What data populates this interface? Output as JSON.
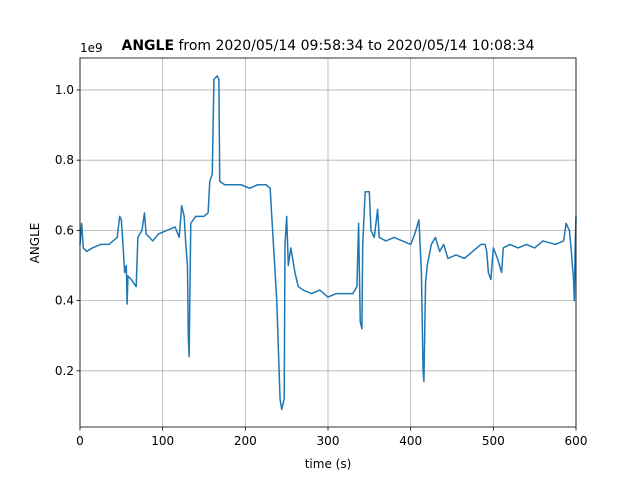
{
  "chart_data": {
    "type": "line",
    "title_parts": [
      "ANGLE",
      "from 2020/05/14 09:58:34 to 2020/05/14 10:08:34"
    ],
    "xlabel": "time (s)",
    "ylabel": "ANGLE",
    "y_offset_text": "1e9",
    "xlim": [
      0,
      600
    ],
    "xticks": [
      0,
      100,
      200,
      300,
      400,
      500,
      600
    ],
    "ylim": [
      0.04,
      1.091
    ],
    "yticks": [
      0.2,
      0.4,
      0.6,
      0.8,
      {
        "value": 1.0,
        "label": "1.0"
      }
    ],
    "grid": true,
    "series": [
      {
        "name": "ANGLE",
        "color": "#1f77b4",
        "x": [
          0,
          2,
          4,
          8,
          15,
          25,
          35,
          45,
          48,
          50,
          52,
          54,
          56,
          57,
          58,
          62,
          68,
          70,
          75,
          78,
          80,
          88,
          95,
          105,
          115,
          120,
          123,
          126,
          128,
          130,
          131,
          132,
          134,
          140,
          150,
          155,
          157,
          160,
          162,
          166,
          168,
          169,
          175,
          185,
          195,
          205,
          215,
          225,
          230,
          233,
          238,
          242,
          244,
          247,
          248,
          250,
          252,
          255,
          260,
          264,
          270,
          280,
          290,
          300,
          310,
          320,
          330,
          335,
          337,
          339,
          341,
          342,
          345,
          350,
          352,
          356,
          360,
          362,
          370,
          380,
          390,
          400,
          405,
          410,
          413,
          415,
          416,
          418,
          420,
          425,
          430,
          435,
          440,
          445,
          455,
          465,
          475,
          485,
          490,
          492,
          494,
          497,
          500,
          505,
          510,
          512,
          520,
          530,
          540,
          550,
          560,
          575,
          585,
          588,
          592,
          594,
          597,
          598,
          599,
          600
        ],
        "values": [
          0.56,
          0.62,
          0.55,
          0.54,
          0.55,
          0.56,
          0.56,
          0.58,
          0.64,
          0.63,
          0.56,
          0.48,
          0.5,
          0.39,
          0.47,
          0.46,
          0.44,
          0.58,
          0.6,
          0.65,
          0.59,
          0.57,
          0.59,
          0.6,
          0.61,
          0.58,
          0.67,
          0.64,
          0.56,
          0.5,
          0.3,
          0.24,
          0.62,
          0.64,
          0.64,
          0.65,
          0.74,
          0.76,
          1.03,
          1.04,
          1.03,
          0.74,
          0.73,
          0.73,
          0.73,
          0.72,
          0.73,
          0.73,
          0.72,
          0.6,
          0.4,
          0.12,
          0.09,
          0.12,
          0.56,
          0.64,
          0.5,
          0.55,
          0.48,
          0.44,
          0.43,
          0.42,
          0.43,
          0.41,
          0.42,
          0.42,
          0.42,
          0.44,
          0.62,
          0.34,
          0.32,
          0.56,
          0.71,
          0.71,
          0.6,
          0.58,
          0.66,
          0.58,
          0.57,
          0.58,
          0.57,
          0.56,
          0.59,
          0.63,
          0.48,
          0.2,
          0.17,
          0.45,
          0.5,
          0.56,
          0.58,
          0.54,
          0.56,
          0.52,
          0.53,
          0.52,
          0.54,
          0.56,
          0.56,
          0.54,
          0.48,
          0.46,
          0.55,
          0.52,
          0.48,
          0.55,
          0.56,
          0.55,
          0.56,
          0.55,
          0.57,
          0.56,
          0.57,
          0.62,
          0.6,
          0.55,
          0.46,
          0.4,
          0.55,
          0.64
        ]
      }
    ]
  }
}
